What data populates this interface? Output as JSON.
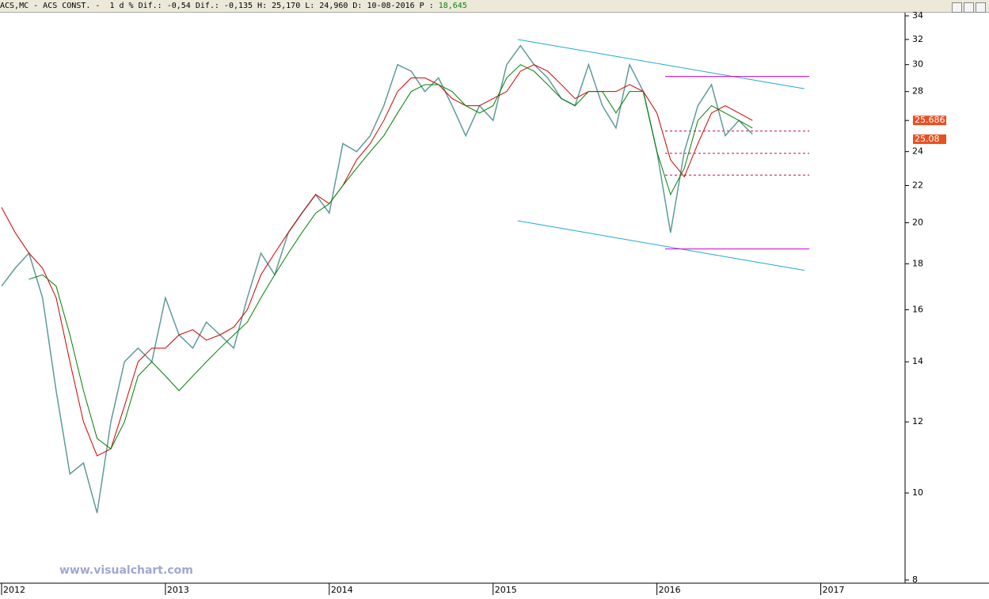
{
  "header": [
    "ACS,MC - ACS CONST. -  1 d % Dif.:",
    "-0,54",
    "Dif.:",
    "-0,135",
    "H:",
    "25,170",
    "L:",
    "24,960",
    "D:",
    "10-08-2016",
    "P :",
    "18,645"
  ],
  "watermark": "www.visualchart.com",
  "chart_data": {
    "type": "line",
    "log_scale": true,
    "xlim": [
      2012,
      2017.5
    ],
    "xticks": [
      2012,
      2013,
      2014,
      2015,
      2016,
      2017
    ],
    "ylim": [
      8,
      34
    ],
    "yticks": [
      8,
      10,
      12,
      14,
      16,
      18,
      20,
      22,
      24,
      26,
      28,
      30,
      32,
      34
    ],
    "x": [
      2012,
      2012.083,
      2012.167,
      2012.25,
      2012.333,
      2012.417,
      2012.5,
      2012.583,
      2012.667,
      2012.75,
      2012.833,
      2012.917,
      2013,
      2013.083,
      2013.167,
      2013.25,
      2013.333,
      2013.417,
      2013.5,
      2013.583,
      2013.667,
      2013.75,
      2013.833,
      2013.917,
      2014,
      2014.083,
      2014.167,
      2014.25,
      2014.333,
      2014.417,
      2014.5,
      2014.583,
      2014.667,
      2014.75,
      2014.833,
      2014.917,
      2015,
      2015.083,
      2015.167,
      2015.25,
      2015.333,
      2015.417,
      2015.5,
      2015.583,
      2015.667,
      2015.75,
      2015.833,
      2015.917,
      2016,
      2016.083,
      2016.167,
      2016.25,
      2016.333,
      2016.417,
      2016.5,
      2016.583
    ],
    "series": [
      {
        "name": "ACS",
        "color": "#5f9a9a",
        "values": [
          17,
          17.8,
          18.5,
          16.5,
          13,
          10.5,
          10.8,
          9.5,
          12,
          14,
          14.5,
          14,
          16.5,
          15,
          14.5,
          15.5,
          15,
          14.5,
          16.5,
          18.5,
          17.5,
          19.5,
          20.5,
          21.5,
          20.5,
          24.5,
          24,
          25,
          27,
          30,
          29.5,
          28,
          29,
          27,
          25,
          27,
          26,
          30,
          31.5,
          30,
          29,
          27.5,
          27,
          30,
          27,
          25.5,
          30,
          28,
          24,
          19.5,
          24,
          27,
          28.5,
          25,
          26,
          25.1
        ]
      },
      {
        "name": "MA red",
        "color": "#d00000",
        "values": [
          20.8,
          19.5,
          18.5,
          17.8,
          16.5,
          14,
          12,
          11,
          11.2,
          12.5,
          14,
          14.5,
          14.5,
          15,
          15.2,
          14.8,
          15,
          15.3,
          16,
          17.5,
          18.5,
          19.5,
          20.5,
          21.5,
          21,
          22,
          23.5,
          24.5,
          26,
          28,
          29,
          29,
          28.5,
          27.5,
          27,
          27,
          27.5,
          28,
          29.5,
          30,
          29.5,
          28.5,
          27.5,
          28,
          28,
          28,
          28.5,
          28,
          26.5,
          23.5,
          22.5,
          24.5,
          26.5,
          27,
          26.5,
          26
        ]
      },
      {
        "name": "MA green",
        "color": "#008000",
        "values": [
          null,
          null,
          17.3,
          17.5,
          17,
          15,
          13,
          11.5,
          11.2,
          12,
          13.5,
          14,
          13.5,
          13,
          13.5,
          14,
          14.5,
          15,
          15.5,
          16.5,
          17.5,
          18.5,
          19.5,
          20.5,
          21,
          22,
          23,
          24,
          25,
          26.5,
          28,
          28.5,
          28.5,
          28,
          27,
          26.5,
          27,
          29,
          30,
          29.5,
          28.5,
          27.5,
          27,
          28,
          28,
          26.5,
          28,
          28,
          24,
          21.5,
          23,
          26,
          27,
          26.5,
          26,
          25.5
        ]
      }
    ],
    "lines": [
      {
        "x": [
          2015.15,
          2016.9
        ],
        "y": [
          32,
          28.2
        ],
        "color": "#20a8d8"
      },
      {
        "x": [
          2015.15,
          2016.9
        ],
        "y": [
          20.1,
          17.7
        ],
        "color": "#20a8d8"
      },
      {
        "x": [
          2016.05,
          2016.93
        ],
        "y": [
          29.1,
          29.1
        ],
        "color": "#d000d0"
      },
      {
        "x": [
          2016.05,
          2016.93
        ],
        "y": [
          18.7,
          18.7
        ],
        "color": "#d000d0"
      },
      {
        "x": [
          2016.05,
          2016.93
        ],
        "y": [
          25.3,
          25.3
        ],
        "color": "#d00060",
        "dashed": true
      },
      {
        "x": [
          2016.05,
          2016.93
        ],
        "y": [
          23.9,
          23.9
        ],
        "color": "#d00060",
        "dashed": true
      },
      {
        "x": [
          2016.05,
          2016.93
        ],
        "y": [
          22.6,
          22.6
        ],
        "color": "#d00060",
        "dashed": true
      }
    ],
    "price_markers": [
      {
        "value": 25.686,
        "color": "#e85020"
      },
      {
        "value": 25.08,
        "color": "#e85020"
      }
    ]
  }
}
